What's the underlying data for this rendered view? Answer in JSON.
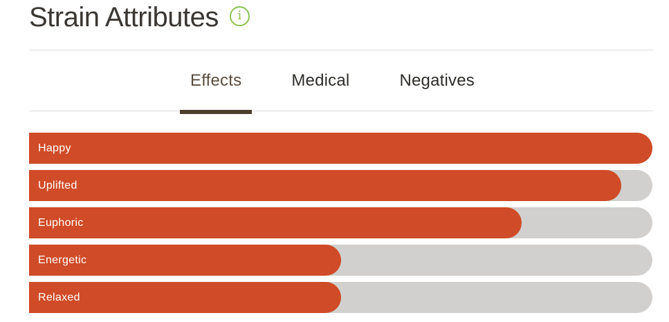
{
  "header": {
    "title": "Strain Attributes",
    "info_icon": {
      "glyph": "i",
      "color": "#8cc152"
    }
  },
  "tabs": {
    "items": [
      {
        "label": "Effects",
        "active": true
      },
      {
        "label": "Medical",
        "active": false
      },
      {
        "label": "Negatives",
        "active": false
      }
    ],
    "active_text_color": "#5b4e3f",
    "active_underline_color": "#4a3e2d",
    "inactive_text_color": "#2f2d2a"
  },
  "chart_data": {
    "type": "bar",
    "orientation": "horizontal",
    "title": "Strain Attributes",
    "active_tab": "Effects",
    "categories": [
      "Happy",
      "Uplifted",
      "Euphoric",
      "Energetic",
      "Relaxed"
    ],
    "values": [
      100,
      95,
      79,
      50,
      50
    ],
    "xlim": [
      0,
      100
    ],
    "value_unit": "percent of full track width (no numeric axis shown)",
    "grid": false,
    "legend": false,
    "bar_color": "#d04b27",
    "track_color": "#d1d0ce",
    "label_color": "#ffffff"
  },
  "colors": {
    "divider": "#dcdbd9",
    "title_text": "#3b3733",
    "background": "#ffffff"
  }
}
